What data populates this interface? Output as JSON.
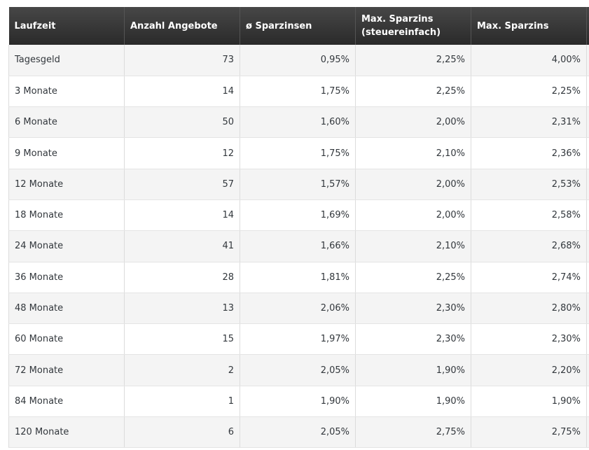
{
  "table": {
    "headers": [
      "Laufzeit",
      "Anzahl Angebote",
      "ø Sparzinsen",
      "Max. Sparzins (steuereinfach)",
      "Max. Sparzins"
    ],
    "rows": [
      [
        "Tagesgeld",
        "73",
        "0,95%",
        "2,25%",
        "4,00%"
      ],
      [
        "3 Monate",
        "14",
        "1,75%",
        "2,25%",
        "2,25%"
      ],
      [
        "6 Monate",
        "50",
        "1,60%",
        "2,00%",
        "2,31%"
      ],
      [
        "9 Monate",
        "12",
        "1,75%",
        "2,10%",
        "2,36%"
      ],
      [
        "12 Monate",
        "57",
        "1,57%",
        "2,00%",
        "2,53%"
      ],
      [
        "18 Monate",
        "14",
        "1,69%",
        "2,00%",
        "2,58%"
      ],
      [
        "24 Monate",
        "41",
        "1,66%",
        "2,10%",
        "2,68%"
      ],
      [
        "36 Monate",
        "28",
        "1,81%",
        "2,25%",
        "2,74%"
      ],
      [
        "48 Monate",
        "13",
        "2,06%",
        "2,30%",
        "2,80%"
      ],
      [
        "60 Monate",
        "15",
        "1,97%",
        "2,30%",
        "2,30%"
      ],
      [
        "72 Monate",
        "2",
        "2,05%",
        "1,90%",
        "2,20%"
      ],
      [
        "84 Monate",
        "1",
        "1,90%",
        "1,90%",
        "1,90%"
      ],
      [
        "120 Monate",
        "6",
        "2,05%",
        "2,75%",
        "2,75%"
      ]
    ]
  },
  "colors": {
    "header_bg": "#2f2f2f",
    "header_text": "#ffffff",
    "row_odd": "#f4f4f4",
    "row_even": "#ffffff",
    "cell_text": "#32373c",
    "grid": "#dcdcdc"
  }
}
